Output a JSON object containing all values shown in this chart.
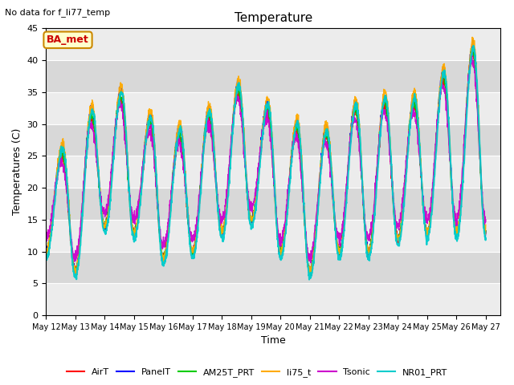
{
  "title": "Temperature",
  "xlabel": "Time",
  "ylabel": "Temperatures (C)",
  "note": "No data for f_li77_temp",
  "ba_met_label": "BA_met",
  "ylim": [
    0,
    45
  ],
  "x_tick_labels": [
    "May 12",
    "May 13",
    "May 14",
    "May 15",
    "May 16",
    "May 17",
    "May 18",
    "May 19",
    "May 20",
    "May 21",
    "May 22",
    "May 23",
    "May 24",
    "May 25",
    "May 26",
    "May 27"
  ],
  "series": {
    "AirT": {
      "color": "#ff0000",
      "lw": 1.0
    },
    "PanelT": {
      "color": "#0000ff",
      "lw": 1.0
    },
    "AM25T_PRT": {
      "color": "#00cc00",
      "lw": 1.0
    },
    "li75_t": {
      "color": "#ffaa00",
      "lw": 1.0
    },
    "Tsonic": {
      "color": "#cc00cc",
      "lw": 1.0
    },
    "NR01_PRT": {
      "color": "#00cccc",
      "lw": 1.5
    }
  },
  "bg_color": "#ffffff",
  "plot_bg_light": "#ececec",
  "plot_bg_dark": "#d8d8d8",
  "grid_color": "#ffffff"
}
